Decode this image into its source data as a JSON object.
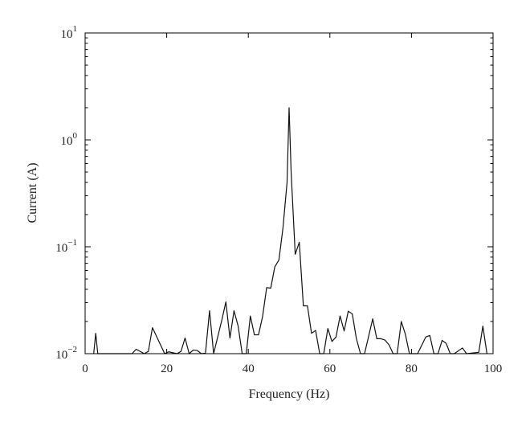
{
  "chart_data": {
    "type": "line",
    "title": "",
    "xlabel": "Frequency (Hz)",
    "ylabel": "Current (A)",
    "xlim": [
      0,
      100
    ],
    "ylim": [
      0.01,
      10
    ],
    "yscale": "log",
    "grid": false,
    "legend": "none",
    "x_ticks": [
      0,
      20,
      40,
      60,
      80,
      100
    ],
    "y_ticks": [
      {
        "value": 0.01,
        "mantissa": "10",
        "exponent": "−2"
      },
      {
        "value": 0.1,
        "mantissa": "10",
        "exponent": "−1"
      },
      {
        "value": 1,
        "mantissa": "10",
        "exponent": "0"
      },
      {
        "value": 10,
        "mantissa": "10",
        "exponent": "1"
      }
    ],
    "series": [
      {
        "color": "#111111",
        "x": [
          2.1,
          2.6,
          3.1,
          11.5,
          12.5,
          14.5,
          15.5,
          16.5,
          19.5,
          20.5,
          22.5,
          23.5,
          24.5,
          25.5,
          26.5,
          27.5,
          28.5,
          29.5,
          30.5,
          31.5,
          33.5,
          34.5,
          35.5,
          36.5,
          37.5,
          38.5,
          39.5,
          40.5,
          41.5,
          42.5,
          43.5,
          44.5,
          45.5,
          46.5,
          47.5,
          48.5,
          49.5,
          50.0,
          50.5,
          51.5,
          52.5,
          53.5,
          54.5,
          55.5,
          56.5,
          57.5,
          58.5,
          59.5,
          60.5,
          61.5,
          62.5,
          63.5,
          64.5,
          65.5,
          66.5,
          67.5,
          68.5,
          70.5,
          71.5,
          72.5,
          73.5,
          74.5,
          75.5,
          76.5,
          77.5,
          78.5,
          79.5,
          80.5,
          81.5,
          83.5,
          84.5,
          85.5,
          86.5,
          87.5,
          88.5,
          89.5,
          90.5,
          92.5,
          93.5,
          96.5,
          97.5,
          98.5
        ],
        "y": [
          0.01,
          0.0155,
          0.01,
          0.01,
          0.011,
          0.01,
          0.0105,
          0.0175,
          0.01,
          0.0104,
          0.01,
          0.0105,
          0.014,
          0.01,
          0.0108,
          0.0107,
          0.01,
          0.0101,
          0.0252,
          0.01,
          0.0205,
          0.0305,
          0.014,
          0.0252,
          0.0182,
          0.01,
          0.01,
          0.0225,
          0.015,
          0.015,
          0.0222,
          0.0415,
          0.041,
          0.065,
          0.075,
          0.15,
          0.4,
          2.0,
          0.5,
          0.085,
          0.11,
          0.028,
          0.028,
          0.0155,
          0.0165,
          0.01,
          0.01,
          0.0172,
          0.013,
          0.0143,
          0.0225,
          0.0163,
          0.025,
          0.0235,
          0.0138,
          0.01,
          0.01,
          0.0212,
          0.0138,
          0.0138,
          0.0134,
          0.0121,
          0.01,
          0.01,
          0.02,
          0.0152,
          0.01,
          0.01,
          0.01,
          0.0143,
          0.0148,
          0.01,
          0.01,
          0.0133,
          0.0125,
          0.01,
          0.01,
          0.0113,
          0.01,
          0.0103,
          0.0181,
          0.01
        ]
      }
    ]
  }
}
